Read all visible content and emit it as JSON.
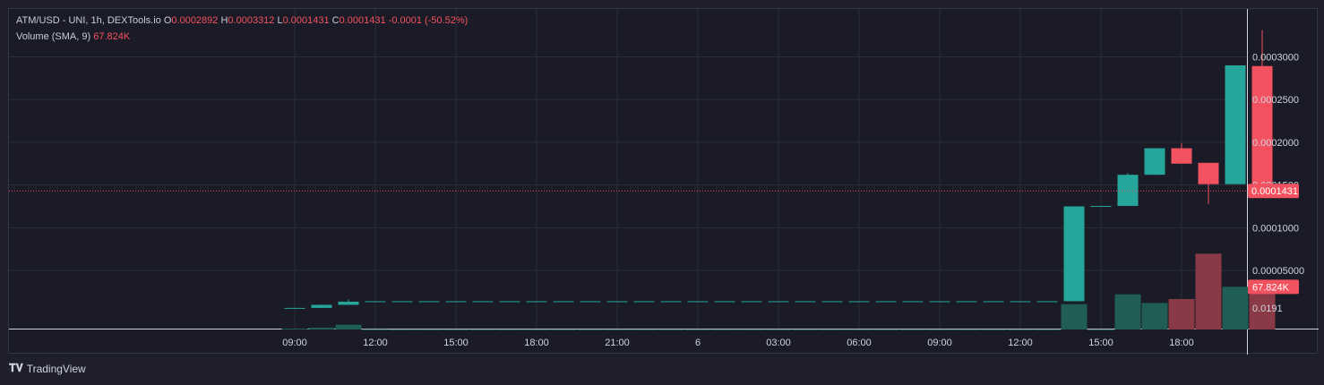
{
  "legend": {
    "symbol": "ATM/USD - UNI, 1h, DEXTools.io",
    "o_label": "O",
    "o_value": "0.0002892",
    "h_label": "H",
    "h_value": "0.0003312",
    "l_label": "L",
    "l_value": "0.0001431",
    "c_label": "C",
    "c_value": "0.0001431",
    "change": "-0.0001 (-50.52%)",
    "volume_label": "Volume (SMA, 9)",
    "volume_value": "67.824K"
  },
  "branding": {
    "text": "TradingView"
  },
  "colors": {
    "up": "#26a69a",
    "down": "#f2525f",
    "vol_up": "#1f5d55",
    "vol_down": "#8a3a46",
    "grid": "#2a2d3a",
    "axis_text": "#d1d4dc"
  },
  "chart_data": {
    "type": "candlestick",
    "price_axis": {
      "ticks": [
        0.0003,
        0.00025,
        0.0002,
        0.00015,
        0.0001,
        5e-05
      ],
      "tick_labels": [
        "0.0003000",
        "0.0002500",
        "0.0002000",
        "0.0001500",
        "0.0001000",
        "0.00005000"
      ],
      "bottom_label": "0.0191",
      "last_price_label": "0.0001431",
      "volume_label": "67.824K"
    },
    "time_axis": {
      "labels": [
        "09:00",
        "12:00",
        "15:00",
        "18:00",
        "21:00",
        "6",
        "03:00",
        "06:00",
        "09:00",
        "12:00",
        "15:00",
        "18:00"
      ]
    },
    "candles": [
      {
        "i": 0,
        "o": 5.8e-06,
        "h": 6.2e-06,
        "l": 5.8e-06,
        "c": 6.2e-06,
        "vol": 0.3
      },
      {
        "i": 1,
        "o": 6.2e-06,
        "h": 1.02e-05,
        "l": 6.2e-06,
        "c": 9.8e-06,
        "vol": 0.6
      },
      {
        "i": 2,
        "o": 9.8e-06,
        "h": 1.62e-05,
        "l": 9.8e-06,
        "c": 1.35e-05,
        "vol": 1.6
      },
      {
        "i": 3,
        "o": 1.35e-05,
        "h": 1.4e-05,
        "l": 1.35e-05,
        "c": 1.4e-05,
        "vol": 0.08
      },
      {
        "i": 4,
        "o": 1.4e-05,
        "h": 1.4e-05,
        "l": 1.38e-05,
        "c": 1.4e-05,
        "vol": 0.05
      },
      {
        "i": 5,
        "o": 1.4e-05,
        "h": 1.4e-05,
        "l": 1.38e-05,
        "c": 1.4e-05,
        "vol": 0.05
      },
      {
        "i": 6,
        "o": 1.4e-05,
        "h": 1.4e-05,
        "l": 1.38e-05,
        "c": 1.4e-05,
        "vol": 0.05
      },
      {
        "i": 7,
        "o": 1.4e-05,
        "h": 1.4e-05,
        "l": 1.38e-05,
        "c": 1.4e-05,
        "vol": 0.05
      },
      {
        "i": 8,
        "o": 1.4e-05,
        "h": 1.4e-05,
        "l": 1.38e-05,
        "c": 1.4e-05,
        "vol": 0.05
      },
      {
        "i": 9,
        "o": 1.4e-05,
        "h": 1.4e-05,
        "l": 1.38e-05,
        "c": 1.4e-05,
        "vol": 0.05
      },
      {
        "i": 10,
        "o": 1.4e-05,
        "h": 1.4e-05,
        "l": 1.38e-05,
        "c": 1.4e-05,
        "vol": 0.05
      },
      {
        "i": 11,
        "o": 1.4e-05,
        "h": 1.4e-05,
        "l": 1.38e-05,
        "c": 1.4e-05,
        "vol": 0.05
      },
      {
        "i": 12,
        "o": 1.4e-05,
        "h": 1.4e-05,
        "l": 1.38e-05,
        "c": 1.4e-05,
        "vol": 0.05
      },
      {
        "i": 13,
        "o": 1.4e-05,
        "h": 1.4e-05,
        "l": 1.38e-05,
        "c": 1.4e-05,
        "vol": 0.05
      },
      {
        "i": 14,
        "o": 1.4e-05,
        "h": 1.4e-05,
        "l": 1.38e-05,
        "c": 1.4e-05,
        "vol": 0.05
      },
      {
        "i": 15,
        "o": 1.4e-05,
        "h": 1.4e-05,
        "l": 1.38e-05,
        "c": 1.4e-05,
        "vol": 0.05
      },
      {
        "i": 16,
        "o": 1.4e-05,
        "h": 1.4e-05,
        "l": 1.38e-05,
        "c": 1.4e-05,
        "vol": 0.05
      },
      {
        "i": 17,
        "o": 1.4e-05,
        "h": 1.4e-05,
        "l": 1.38e-05,
        "c": 1.4e-05,
        "vol": 0.05
      },
      {
        "i": 18,
        "o": 1.4e-05,
        "h": 1.4e-05,
        "l": 1.38e-05,
        "c": 1.4e-05,
        "vol": 0.05
      },
      {
        "i": 19,
        "o": 1.4e-05,
        "h": 1.4e-05,
        "l": 1.38e-05,
        "c": 1.4e-05,
        "vol": 0.05
      },
      {
        "i": 20,
        "o": 1.4e-05,
        "h": 1.4e-05,
        "l": 1.38e-05,
        "c": 1.4e-05,
        "vol": 0.05
      },
      {
        "i": 21,
        "o": 1.4e-05,
        "h": 1.4e-05,
        "l": 1.38e-05,
        "c": 1.4e-05,
        "vol": 0.05
      },
      {
        "i": 22,
        "o": 1.4e-05,
        "h": 1.4e-05,
        "l": 1.38e-05,
        "c": 1.4e-05,
        "vol": 0.05
      },
      {
        "i": 23,
        "o": 1.4e-05,
        "h": 1.4e-05,
        "l": 1.38e-05,
        "c": 1.4e-05,
        "vol": 0.05
      },
      {
        "i": 24,
        "o": 1.4e-05,
        "h": 1.4e-05,
        "l": 1.38e-05,
        "c": 1.4e-05,
        "vol": 0.05
      },
      {
        "i": 25,
        "o": 1.4e-05,
        "h": 1.4e-05,
        "l": 1.38e-05,
        "c": 1.4e-05,
        "vol": 0.05
      },
      {
        "i": 26,
        "o": 1.4e-05,
        "h": 1.4e-05,
        "l": 1.38e-05,
        "c": 1.4e-05,
        "vol": 0.05
      },
      {
        "i": 27,
        "o": 1.4e-05,
        "h": 1.4e-05,
        "l": 1.38e-05,
        "c": 1.4e-05,
        "vol": 0.05
      },
      {
        "i": 28,
        "o": 1.4e-05,
        "h": 1.4e-05,
        "l": 1.38e-05,
        "c": 1.4e-05,
        "vol": 0.05
      },
      {
        "i": 29,
        "o": 1.4e-05,
        "h": 0.000125,
        "l": 1.4e-05,
        "c": 0.000125,
        "vol": 8.5
      },
      {
        "i": 30,
        "o": 0.000125,
        "h": 0.0001255,
        "l": 0.000125,
        "c": 0.0001255,
        "vol": 0.05
      },
      {
        "i": 31,
        "o": 0.0001255,
        "h": 0.000164,
        "l": 0.0001255,
        "c": 0.000162,
        "vol": 11.8
      },
      {
        "i": 32,
        "o": 0.000162,
        "h": 0.000193,
        "l": 0.000162,
        "c": 0.000193,
        "vol": 8.9
      },
      {
        "i": 33,
        "o": 0.000193,
        "h": 0.000199,
        "l": 0.000175,
        "c": 0.000175,
        "vol": 10.2
      },
      {
        "i": 34,
        "o": 0.000176,
        "h": 0.000176,
        "l": 0.000128,
        "c": 0.000151,
        "vol": 25.4
      },
      {
        "i": 35,
        "o": 0.000151,
        "h": 0.00029,
        "l": 0.000151,
        "c": 0.00029,
        "vol": 14.3
      },
      {
        "i": 36,
        "o": 0.0002892,
        "h": 0.0003312,
        "l": 0.0001431,
        "c": 0.0001431,
        "vol": 14.3
      }
    ],
    "last_price": 0.0001431,
    "price_range": [
      -1.8e-05,
      0.000356
    ],
    "volume_range": [
      0,
      30
    ],
    "grid": true
  }
}
